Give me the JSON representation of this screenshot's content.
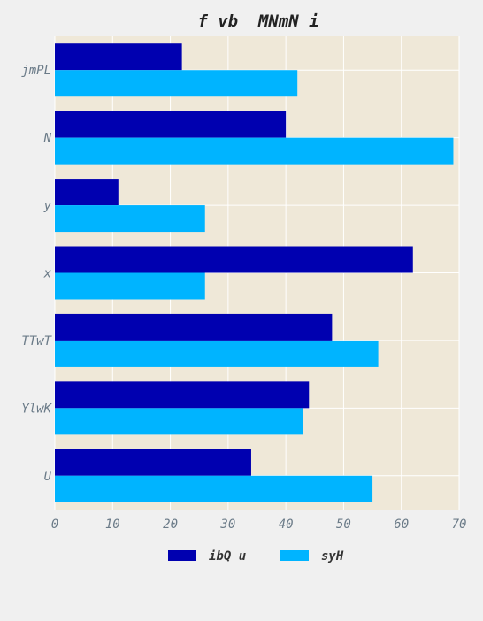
{
  "chart_data": {
    "type": "bar",
    "orientation": "horizontal",
    "title": "f vb  MNmN i",
    "xlabel": "",
    "ylabel": "",
    "categories": [
      "jmPL",
      "N",
      "y",
      "x",
      "TTwT",
      "YlwK",
      "U"
    ],
    "series": [
      {
        "name": "ibQ u",
        "color": "#0000b0",
        "values": [
          22,
          40,
          11,
          62,
          48,
          44,
          34
        ]
      },
      {
        "name": "syH",
        "color": "#00b4ff",
        "values": [
          42,
          69,
          26,
          26,
          56,
          43,
          55
        ]
      }
    ],
    "xlim": [
      0,
      70
    ],
    "xticks": [
      0,
      10,
      20,
      30,
      40,
      50,
      60,
      70
    ],
    "grid": true,
    "legend_position": "bottom-center",
    "plot_background": "#efe8d8",
    "page_background": "#f0f0f0"
  }
}
